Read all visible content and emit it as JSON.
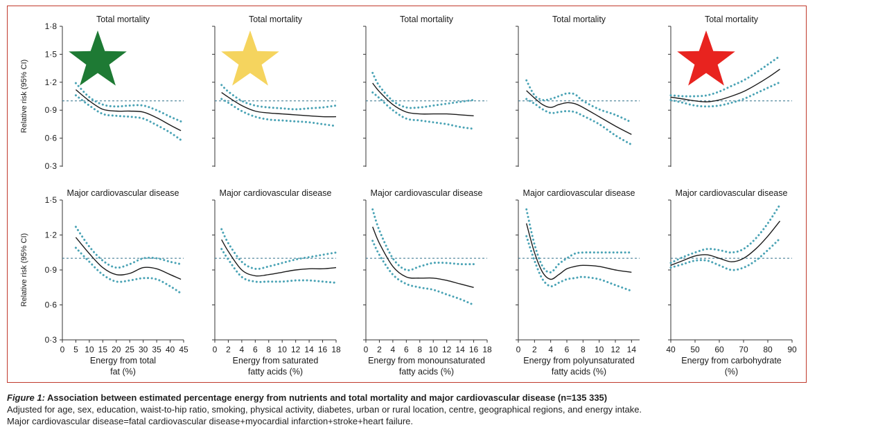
{
  "figure": {
    "caption_lead": "Figure 1:",
    "caption_title": " Association between estimated percentage energy from nutrients and total mortality and major cardiovascular disease (n=135 335)",
    "caption_line2": "Adjusted for age, sex, education, waist-to-hip ratio, smoking, physical activity, diabetes, urban or rural location, centre, geographical regions, and energy intake.",
    "caption_line3": "Major cardiovascular disease=fatal cardiovascular disease+myocardial infarction+stroke+heart failure."
  },
  "colors": {
    "estimate": "#1a1a1a",
    "ci": "#4aa3b5",
    "reference": "#2c6e87",
    "frame": "#c0392b"
  },
  "rows": [
    {
      "ylabel": "Relative risk (95% CI)",
      "ylim": [
        0.3,
        1.8
      ],
      "yticks": [
        0.3,
        0.6,
        0.9,
        1.2,
        1.5,
        1.8
      ],
      "ytick_labels": [
        "0·3",
        "0·6",
        "0·9",
        "1·2",
        "1·5",
        "1·8"
      ]
    },
    {
      "ylabel": "Relative risk (95% CI)",
      "ylim": [
        0.3,
        1.5
      ],
      "yticks": [
        0.3,
        0.6,
        0.9,
        1.2,
        1.5
      ],
      "ytick_labels": [
        "0·3",
        "0·6",
        "0·9",
        "1·2",
        "1·5"
      ]
    }
  ],
  "badges": [
    {
      "column": 0,
      "label": "star-green",
      "color": "#1e7a34"
    },
    {
      "column": 1,
      "label": "star-yellow",
      "color": "#f5d45e"
    },
    {
      "column": 4,
      "label": "star-red",
      "color": "#e8231f"
    }
  ],
  "chart_data": [
    {
      "type": "line",
      "row": 0,
      "col": 0,
      "title": "Total mortality",
      "xlabel": [
        "Energy from total",
        "fat (%)"
      ],
      "xlim": [
        0,
        45
      ],
      "xticks": [
        0,
        5,
        10,
        15,
        20,
        25,
        30,
        35,
        40,
        45
      ],
      "reference": 1.0,
      "series": [
        {
          "name": "estimate",
          "x": [
            5,
            10,
            15,
            20,
            25,
            30,
            35,
            40,
            44
          ],
          "y": [
            1.12,
            1.0,
            0.91,
            0.89,
            0.89,
            0.88,
            0.82,
            0.74,
            0.68
          ]
        },
        {
          "name": "upper 95% CI",
          "x": [
            5,
            10,
            15,
            20,
            25,
            30,
            35,
            40,
            44
          ],
          "y": [
            1.19,
            1.04,
            0.96,
            0.94,
            0.95,
            0.95,
            0.9,
            0.83,
            0.78
          ]
        },
        {
          "name": "lower 95% CI",
          "x": [
            5,
            10,
            15,
            20,
            25,
            30,
            35,
            40,
            44
          ],
          "y": [
            1.06,
            0.95,
            0.86,
            0.84,
            0.83,
            0.81,
            0.74,
            0.66,
            0.58
          ]
        }
      ]
    },
    {
      "type": "line",
      "row": 0,
      "col": 1,
      "title": "Total mortality",
      "xlabel": [
        "Energy from saturated",
        "fatty acids (%)"
      ],
      "xlim": [
        0,
        18
      ],
      "xticks": [
        0,
        2,
        4,
        6,
        8,
        10,
        12,
        14,
        16,
        18
      ],
      "reference": 1.0,
      "series": [
        {
          "name": "estimate",
          "x": [
            1,
            2,
            4,
            6,
            8,
            10,
            12,
            14,
            16,
            18
          ],
          "y": [
            1.09,
            1.04,
            0.95,
            0.89,
            0.87,
            0.86,
            0.85,
            0.84,
            0.83,
            0.83
          ]
        },
        {
          "name": "upper 95% CI",
          "x": [
            1,
            2,
            4,
            6,
            8,
            10,
            12,
            14,
            16,
            18
          ],
          "y": [
            1.17,
            1.1,
            1.0,
            0.95,
            0.93,
            0.92,
            0.91,
            0.92,
            0.93,
            0.95
          ]
        },
        {
          "name": "lower 95% CI",
          "x": [
            1,
            2,
            4,
            6,
            8,
            10,
            12,
            14,
            16,
            18
          ],
          "y": [
            1.02,
            0.98,
            0.89,
            0.83,
            0.8,
            0.79,
            0.78,
            0.77,
            0.75,
            0.73
          ]
        }
      ]
    },
    {
      "type": "line",
      "row": 0,
      "col": 2,
      "title": "Total mortality",
      "xlabel": [
        "Energy from monounsaturated",
        "fatty acids (%)"
      ],
      "xlim": [
        0,
        18
      ],
      "xticks": [
        0,
        2,
        4,
        6,
        8,
        10,
        12,
        14,
        16,
        18
      ],
      "reference": 1.0,
      "series": [
        {
          "name": "estimate",
          "x": [
            1,
            2,
            4,
            6,
            8,
            10,
            12,
            14,
            16
          ],
          "y": [
            1.19,
            1.1,
            0.96,
            0.88,
            0.86,
            0.86,
            0.86,
            0.85,
            0.84
          ]
        },
        {
          "name": "upper 95% CI",
          "x": [
            1,
            2,
            4,
            6,
            8,
            10,
            12,
            14,
            16
          ],
          "y": [
            1.3,
            1.16,
            1.0,
            0.93,
            0.93,
            0.95,
            0.97,
            0.99,
            1.01
          ]
        },
        {
          "name": "lower 95% CI",
          "x": [
            1,
            2,
            4,
            6,
            8,
            10,
            12,
            14,
            16
          ],
          "y": [
            1.09,
            1.03,
            0.9,
            0.81,
            0.79,
            0.77,
            0.75,
            0.72,
            0.7
          ]
        }
      ]
    },
    {
      "type": "line",
      "row": 0,
      "col": 3,
      "title": "Total mortality",
      "xlabel": [
        "Energy from polyunsaturated",
        "fatty acids (%)"
      ],
      "xlim": [
        0,
        15
      ],
      "xticks": [
        0,
        2,
        4,
        6,
        8,
        10,
        12,
        14
      ],
      "reference": 1.0,
      "series": [
        {
          "name": "estimate",
          "x": [
            1,
            2,
            3,
            4,
            5,
            6,
            7,
            8,
            10,
            12,
            14
          ],
          "y": [
            1.11,
            1.03,
            0.96,
            0.93,
            0.96,
            0.98,
            0.97,
            0.93,
            0.83,
            0.73,
            0.64
          ]
        },
        {
          "name": "upper 95% CI",
          "x": [
            1,
            2,
            3,
            4,
            5,
            6,
            7,
            8,
            10,
            12,
            14
          ],
          "y": [
            1.22,
            1.06,
            1.01,
            1.02,
            1.05,
            1.08,
            1.07,
            1.0,
            0.91,
            0.85,
            0.77
          ]
        },
        {
          "name": "lower 95% CI",
          "x": [
            1,
            2,
            3,
            4,
            5,
            6,
            7,
            8,
            10,
            12,
            14
          ],
          "y": [
            1.02,
            0.97,
            0.91,
            0.87,
            0.88,
            0.89,
            0.88,
            0.84,
            0.75,
            0.63,
            0.53
          ]
        }
      ]
    },
    {
      "type": "line",
      "row": 0,
      "col": 4,
      "title": "Total mortality",
      "xlabel": [
        "Energy from carbohydrate",
        "(%)"
      ],
      "xlim": [
        40,
        90
      ],
      "xticks": [
        40,
        50,
        60,
        70,
        80,
        90
      ],
      "reference": 1.0,
      "series": [
        {
          "name": "estimate",
          "x": [
            40,
            45,
            50,
            55,
            60,
            65,
            70,
            75,
            80,
            85
          ],
          "y": [
            1.04,
            1.02,
            1.0,
            0.99,
            1.01,
            1.05,
            1.1,
            1.17,
            1.25,
            1.34
          ]
        },
        {
          "name": "upper 95% CI",
          "x": [
            40,
            45,
            50,
            55,
            60,
            65,
            70,
            75,
            80,
            85
          ],
          "y": [
            1.06,
            1.05,
            1.05,
            1.06,
            1.1,
            1.16,
            1.22,
            1.3,
            1.39,
            1.48
          ]
        },
        {
          "name": "lower 95% CI",
          "x": [
            40,
            45,
            50,
            55,
            60,
            65,
            70,
            75,
            80,
            85
          ],
          "y": [
            1.01,
            0.98,
            0.95,
            0.94,
            0.95,
            0.98,
            1.02,
            1.08,
            1.14,
            1.2
          ]
        }
      ]
    },
    {
      "type": "line",
      "row": 1,
      "col": 0,
      "title": "Major cardiovascular disease",
      "xlabel": [
        "Energy from total",
        "fat (%)"
      ],
      "xlim": [
        0,
        45
      ],
      "xticks": [
        0,
        5,
        10,
        15,
        20,
        25,
        30,
        35,
        40,
        45
      ],
      "reference": 1.0,
      "series": [
        {
          "name": "estimate",
          "x": [
            5,
            10,
            15,
            20,
            25,
            30,
            35,
            40,
            44
          ],
          "y": [
            1.18,
            1.04,
            0.92,
            0.86,
            0.87,
            0.92,
            0.91,
            0.86,
            0.82
          ]
        },
        {
          "name": "upper 95% CI",
          "x": [
            5,
            10,
            15,
            20,
            25,
            30,
            35,
            40,
            44
          ],
          "y": [
            1.27,
            1.1,
            0.98,
            0.92,
            0.95,
            1.0,
            1.0,
            0.97,
            0.95
          ]
        },
        {
          "name": "lower 95% CI",
          "x": [
            5,
            10,
            15,
            20,
            25,
            30,
            35,
            40,
            44
          ],
          "y": [
            1.09,
            0.97,
            0.86,
            0.8,
            0.81,
            0.83,
            0.82,
            0.76,
            0.7
          ]
        }
      ]
    },
    {
      "type": "line",
      "row": 1,
      "col": 1,
      "title": "Major cardiovascular disease",
      "xlabel": [
        "Energy from saturated",
        "fatty acids (%)"
      ],
      "xlim": [
        0,
        18
      ],
      "xticks": [
        0,
        2,
        4,
        6,
        8,
        10,
        12,
        14,
        16,
        18
      ],
      "reference": 1.0,
      "series": [
        {
          "name": "estimate",
          "x": [
            1,
            2,
            4,
            6,
            8,
            10,
            12,
            14,
            16,
            18
          ],
          "y": [
            1.16,
            1.06,
            0.9,
            0.85,
            0.86,
            0.88,
            0.9,
            0.91,
            0.91,
            0.92
          ]
        },
        {
          "name": "upper 95% CI",
          "x": [
            1,
            2,
            4,
            6,
            8,
            10,
            12,
            14,
            16,
            18
          ],
          "y": [
            1.25,
            1.13,
            0.97,
            0.91,
            0.93,
            0.96,
            0.99,
            1.01,
            1.03,
            1.05
          ]
        },
        {
          "name": "lower 95% CI",
          "x": [
            1,
            2,
            4,
            6,
            8,
            10,
            12,
            14,
            16,
            18
          ],
          "y": [
            1.08,
            0.99,
            0.84,
            0.8,
            0.8,
            0.8,
            0.81,
            0.81,
            0.8,
            0.79
          ]
        }
      ]
    },
    {
      "type": "line",
      "row": 1,
      "col": 2,
      "title": "Major cardiovascular disease",
      "xlabel": [
        "Energy from monounsaturated",
        "fatty acids (%)"
      ],
      "xlim": [
        0,
        18
      ],
      "xticks": [
        0,
        2,
        4,
        6,
        8,
        10,
        12,
        14,
        16,
        18
      ],
      "reference": 1.0,
      "series": [
        {
          "name": "estimate",
          "x": [
            1,
            2,
            4,
            6,
            8,
            10,
            12,
            14,
            16
          ],
          "y": [
            1.27,
            1.13,
            0.93,
            0.84,
            0.83,
            0.83,
            0.81,
            0.78,
            0.75
          ]
        },
        {
          "name": "upper 95% CI",
          "x": [
            1,
            2,
            4,
            6,
            8,
            10,
            12,
            14,
            16
          ],
          "y": [
            1.42,
            1.24,
            1.0,
            0.9,
            0.93,
            0.96,
            0.96,
            0.95,
            0.95
          ]
        },
        {
          "name": "lower 95% CI",
          "x": [
            1,
            2,
            4,
            6,
            8,
            10,
            12,
            14,
            16
          ],
          "y": [
            1.15,
            1.03,
            0.86,
            0.78,
            0.75,
            0.73,
            0.69,
            0.65,
            0.6
          ]
        }
      ]
    },
    {
      "type": "line",
      "row": 1,
      "col": 3,
      "title": "Major cardiovascular disease",
      "xlabel": [
        "Energy from polyunsaturated",
        "fatty acids (%)"
      ],
      "xlim": [
        0,
        15
      ],
      "xticks": [
        0,
        2,
        4,
        6,
        8,
        10,
        12,
        14
      ],
      "reference": 1.0,
      "series": [
        {
          "name": "estimate",
          "x": [
            1,
            2,
            3,
            4,
            5,
            6,
            7,
            8,
            10,
            12,
            14
          ],
          "y": [
            1.3,
            1.05,
            0.88,
            0.82,
            0.86,
            0.91,
            0.93,
            0.94,
            0.93,
            0.9,
            0.88
          ]
        },
        {
          "name": "upper 95% CI",
          "x": [
            1,
            2,
            3,
            4,
            5,
            6,
            7,
            8,
            10,
            12,
            14
          ],
          "y": [
            1.42,
            1.12,
            0.93,
            0.88,
            0.95,
            1.0,
            1.04,
            1.05,
            1.05,
            1.05,
            1.05
          ]
        },
        {
          "name": "lower 95% CI",
          "x": [
            1,
            2,
            3,
            4,
            5,
            6,
            7,
            8,
            10,
            12,
            14
          ],
          "y": [
            1.19,
            0.98,
            0.82,
            0.76,
            0.79,
            0.82,
            0.83,
            0.84,
            0.82,
            0.77,
            0.72
          ]
        }
      ]
    },
    {
      "type": "line",
      "row": 1,
      "col": 4,
      "title": "Major cardiovascular disease",
      "xlabel": [
        "Energy from carbohydrate",
        "(%)"
      ],
      "xlim": [
        40,
        90
      ],
      "xticks": [
        40,
        50,
        60,
        70,
        80,
        90
      ],
      "reference": 1.0,
      "series": [
        {
          "name": "estimate",
          "x": [
            40,
            45,
            50,
            55,
            60,
            65,
            70,
            75,
            80,
            85
          ],
          "y": [
            0.94,
            0.98,
            1.02,
            1.03,
            1.0,
            0.97,
            1.0,
            1.08,
            1.19,
            1.32
          ]
        },
        {
          "name": "upper 95% CI",
          "x": [
            40,
            45,
            50,
            55,
            60,
            65,
            70,
            75,
            80,
            85
          ],
          "y": [
            0.96,
            1.01,
            1.05,
            1.08,
            1.07,
            1.05,
            1.08,
            1.17,
            1.3,
            1.46
          ]
        },
        {
          "name": "lower 95% CI",
          "x": [
            40,
            45,
            50,
            55,
            60,
            65,
            70,
            75,
            80,
            85
          ],
          "y": [
            0.92,
            0.95,
            0.98,
            0.98,
            0.94,
            0.9,
            0.92,
            0.98,
            1.07,
            1.17
          ]
        }
      ]
    }
  ]
}
